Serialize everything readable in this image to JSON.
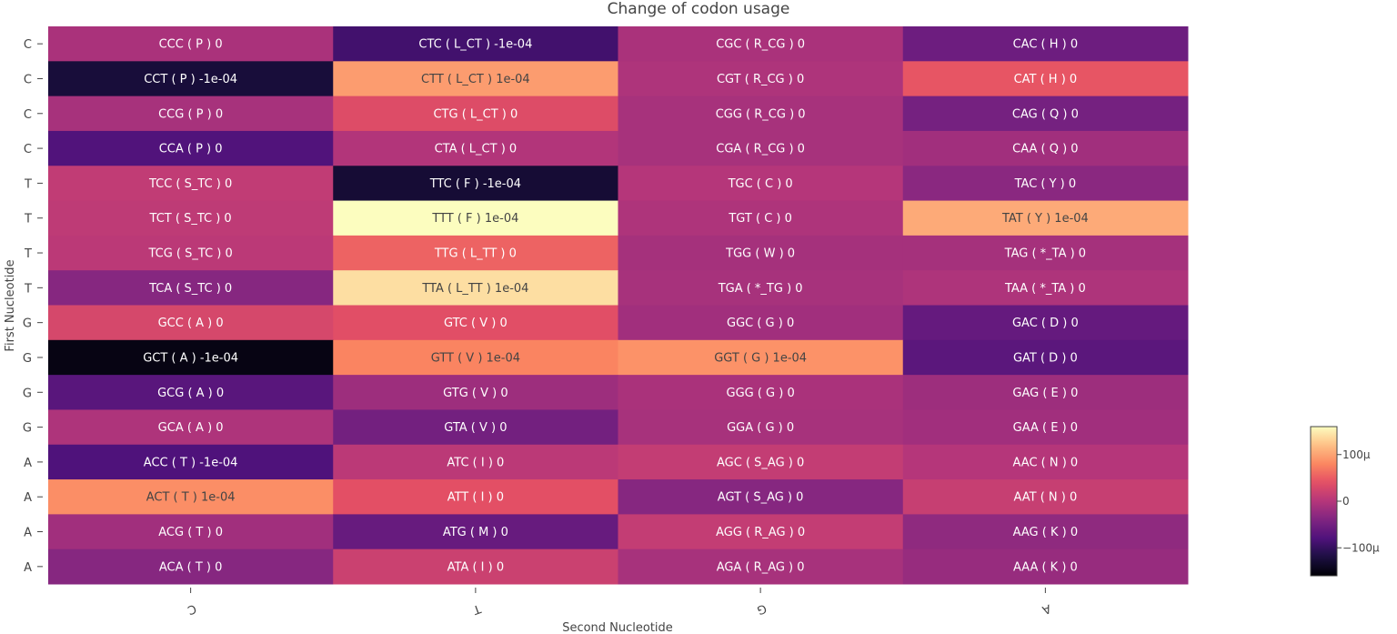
{
  "chart_data": {
    "type": "heatmap",
    "title": "Change of codon usage",
    "xlabel": "Second Nucleotide",
    "ylabel": "First Nucleotide",
    "x_categories": [
      "C",
      "T",
      "G",
      "A"
    ],
    "y_categories": [
      "C",
      "C",
      "C",
      "C",
      "T",
      "T",
      "T",
      "T",
      "G",
      "G",
      "G",
      "G",
      "A",
      "A",
      "A",
      "A"
    ],
    "cells": [
      [
        {
          "label": "CCC ( P ) 0",
          "value": -8
        },
        {
          "label": "CTC ( L_CT ) -1e-04",
          "value": -90
        },
        {
          "label": "CGC ( R_CG ) 0",
          "value": -8
        },
        {
          "label": "CAC ( H ) 0",
          "value": -55
        }
      ],
      [
        {
          "label": "CCT ( P ) -1e-04",
          "value": -125
        },
        {
          "label": "CTT ( L_CT ) 1e-04",
          "value": 95
        },
        {
          "label": "CGT ( R_CG ) 0",
          "value": -5
        },
        {
          "label": "CAT ( H ) 0",
          "value": 45
        }
      ],
      [
        {
          "label": "CCG ( P ) 0",
          "value": -10
        },
        {
          "label": "CTG ( L_CT ) 0",
          "value": 35
        },
        {
          "label": "CGG ( R_CG ) 0",
          "value": -10
        },
        {
          "label": "CAG ( Q ) 0",
          "value": -48
        }
      ],
      [
        {
          "label": "CCA ( P ) 0",
          "value": -78
        },
        {
          "label": "CTA ( L_CT ) 0",
          "value": -2
        },
        {
          "label": "CGA ( R_CG ) 0",
          "value": -10
        },
        {
          "label": "CAA ( Q ) 0",
          "value": -15
        }
      ],
      [
        {
          "label": "TCC ( S_TC ) 0",
          "value": 10
        },
        {
          "label": "TTC ( F ) -1e-04",
          "value": -128
        },
        {
          "label": "TGC ( C ) 0",
          "value": 0
        },
        {
          "label": "TAC ( Y ) 0",
          "value": -32
        }
      ],
      [
        {
          "label": "TCT ( S_TC ) 0",
          "value": 8
        },
        {
          "label": "TTT ( F ) 1e-04",
          "value": 160
        },
        {
          "label": "TGT ( C ) 0",
          "value": -5
        },
        {
          "label": "TAT ( Y ) 1e-04",
          "value": 105
        }
      ],
      [
        {
          "label": "TCG ( S_TC ) 0",
          "value": 5
        },
        {
          "label": "TTG ( L_TT ) 0",
          "value": 55
        },
        {
          "label": "TGG ( W ) 0",
          "value": -12
        },
        {
          "label": "TAG ( *_TA ) 0",
          "value": -12
        }
      ],
      [
        {
          "label": "TCA ( S_TC ) 0",
          "value": -35
        },
        {
          "label": "TTA ( L_TT ) 1e-04",
          "value": 140
        },
        {
          "label": "TGA ( *_TG ) 0",
          "value": -10
        },
        {
          "label": "TAA ( *_TA ) 0",
          "value": -5
        }
      ],
      [
        {
          "label": "GCC ( A ) 0",
          "value": 28
        },
        {
          "label": "GTC ( V ) 0",
          "value": 38
        },
        {
          "label": "GGC ( G ) 0",
          "value": -15
        },
        {
          "label": "GAC ( D ) 0",
          "value": -62
        }
      ],
      [
        {
          "label": "GCT ( A ) -1e-04",
          "value": -150
        },
        {
          "label": "GTT ( V ) 1e-04",
          "value": 78
        },
        {
          "label": "GGT ( G ) 1e-04",
          "value": 88
        },
        {
          "label": "GAT ( D ) 0",
          "value": -70
        }
      ],
      [
        {
          "label": "GCG ( A ) 0",
          "value": -72
        },
        {
          "label": "GTG ( V ) 0",
          "value": -18
        },
        {
          "label": "GGG ( G ) 0",
          "value": -8
        },
        {
          "label": "GAG ( E ) 0",
          "value": -18
        }
      ],
      [
        {
          "label": "GCA ( A ) 0",
          "value": -5
        },
        {
          "label": "GTA ( V ) 0",
          "value": -50
        },
        {
          "label": "GGA ( G ) 0",
          "value": -10
        },
        {
          "label": "GAA ( E ) 0",
          "value": -15
        }
      ],
      [
        {
          "label": "ACC ( T ) -1e-04",
          "value": -80
        },
        {
          "label": "ATC ( I ) 0",
          "value": 5
        },
        {
          "label": "AGC ( S_AG ) 0",
          "value": 12
        },
        {
          "label": "AAC ( N ) 0",
          "value": 0
        }
      ],
      [
        {
          "label": "ACT ( T ) 1e-04",
          "value": 85
        },
        {
          "label": "ATT ( I ) 0",
          "value": 40
        },
        {
          "label": "AGT ( S_AG ) 0",
          "value": -35
        },
        {
          "label": "AAT ( N ) 0",
          "value": 15
        }
      ],
      [
        {
          "label": "ACG ( T ) 0",
          "value": -15
        },
        {
          "label": "ATG ( M ) 0",
          "value": -60
        },
        {
          "label": "AGG ( R_AG ) 0",
          "value": 12
        },
        {
          "label": "AAG ( K ) 0",
          "value": -28
        }
      ],
      [
        {
          "label": "ACA ( T ) 0",
          "value": -35
        },
        {
          "label": "ATA ( I ) 0",
          "value": 18
        },
        {
          "label": "AGA ( R_AG ) 0",
          "value": -10
        },
        {
          "label": "AAA ( K ) 0",
          "value": -22
        }
      ]
    ],
    "colorscale": "magma",
    "zmin": -160,
    "zmax": 160,
    "colorbar": {
      "tick_values": [
        100,
        0,
        -100
      ],
      "tick_labels": [
        "100μ",
        "0",
        "−100μ"
      ],
      "placement": "right"
    }
  }
}
